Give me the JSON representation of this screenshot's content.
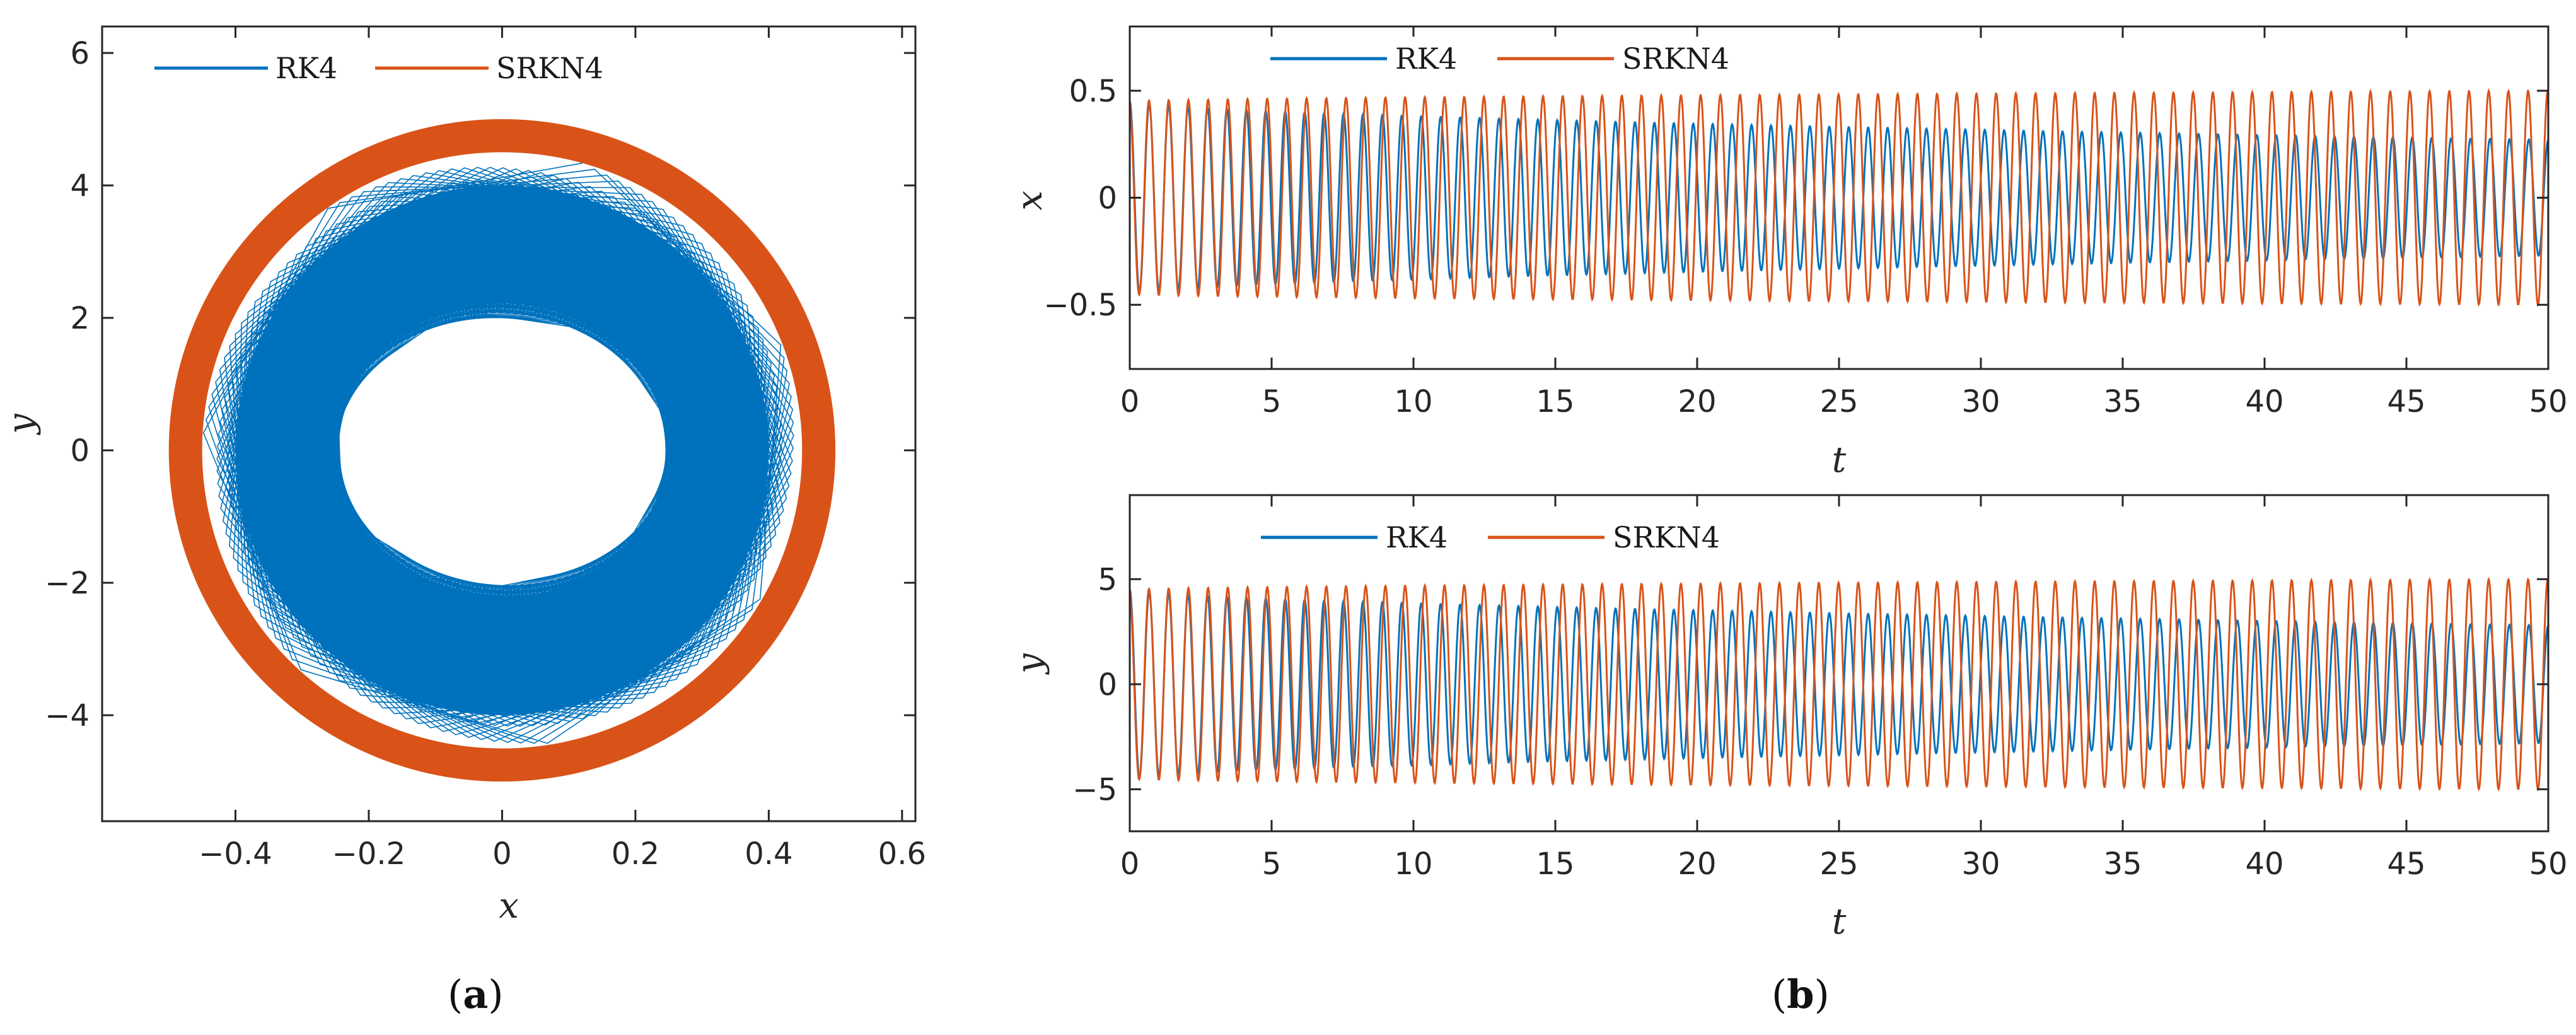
{
  "colors": {
    "rk4": "#0072BD",
    "srkn4": "#D95319",
    "axis": "#262626"
  },
  "chart_data": [
    {
      "id": "a",
      "type": "line",
      "caption": "(a)",
      "caption_letter": "a",
      "xlabel": "x",
      "ylabel": "y",
      "xlim": [
        -0.6,
        0.62
      ],
      "ylim": [
        -5.6,
        6.4
      ],
      "xticks": [
        -0.4,
        -0.2,
        0,
        0.2,
        0.4,
        0.6
      ],
      "xtick_labels": [
        "−0.4",
        "−0.2",
        "0",
        "0.2",
        "0.4",
        "0.6"
      ],
      "yticks": [
        -4,
        -2,
        0,
        2,
        4,
        6
      ],
      "ytick_labels": [
        "−4",
        "−2",
        "0",
        "2",
        "4",
        "6"
      ],
      "legend": [
        "RK4",
        "SRKN4"
      ],
      "legend_position": "top-left",
      "series": [
        {
          "name": "RK4",
          "description": "spiralling phase orbit",
          "x_amp_range": [
            0.45,
            0.27
          ],
          "y_amp_range": [
            4.5,
            2.2
          ]
        },
        {
          "name": "SRKN4",
          "description": "closed ring",
          "x_amp_range": [
            0.5,
            0.45
          ],
          "y_amp_range": [
            5.0,
            4.5
          ]
        }
      ]
    },
    {
      "id": "b1",
      "type": "line",
      "xlabel": "t",
      "ylabel": "x",
      "xlim": [
        0,
        50
      ],
      "ylim": [
        -0.8,
        0.8
      ],
      "xticks": [
        0,
        5,
        10,
        15,
        20,
        25,
        30,
        35,
        40,
        45,
        50
      ],
      "xtick_labels": [
        "0",
        "5",
        "10",
        "15",
        "20",
        "25",
        "30",
        "35",
        "40",
        "45",
        "50"
      ],
      "yticks": [
        -0.5,
        0,
        0.5
      ],
      "ytick_labels": [
        "−0.5",
        "0",
        "0.5"
      ],
      "legend": [
        "RK4",
        "SRKN4"
      ],
      "legend_position": "top-left",
      "series": [
        {
          "name": "RK4",
          "oscillations": 73,
          "amplitude_start": 0.45,
          "amplitude_end": 0.27
        },
        {
          "name": "SRKN4",
          "oscillations": 72,
          "amplitude_start": 0.45,
          "amplitude_end": 0.5
        }
      ]
    },
    {
      "id": "b2",
      "type": "line",
      "caption": "(b)",
      "caption_letter": "b",
      "xlabel": "t",
      "ylabel": "y",
      "xlim": [
        0,
        50
      ],
      "ylim": [
        -7,
        9
      ],
      "xticks": [
        0,
        5,
        10,
        15,
        20,
        25,
        30,
        35,
        40,
        45,
        50
      ],
      "xtick_labels": [
        "0",
        "5",
        "10",
        "15",
        "20",
        "25",
        "30",
        "35",
        "40",
        "45",
        "50"
      ],
      "yticks": [
        -5,
        0,
        5
      ],
      "ytick_labels": [
        "−5",
        "0",
        "5"
      ],
      "legend": [
        "RK4",
        "SRKN4"
      ],
      "legend_position": "top-left",
      "series": [
        {
          "name": "RK4",
          "oscillations": 73,
          "amplitude_start": 4.5,
          "amplitude_end": 2.8
        },
        {
          "name": "SRKN4",
          "oscillations": 72,
          "amplitude_start": 4.5,
          "amplitude_end": 5.0
        }
      ]
    }
  ]
}
